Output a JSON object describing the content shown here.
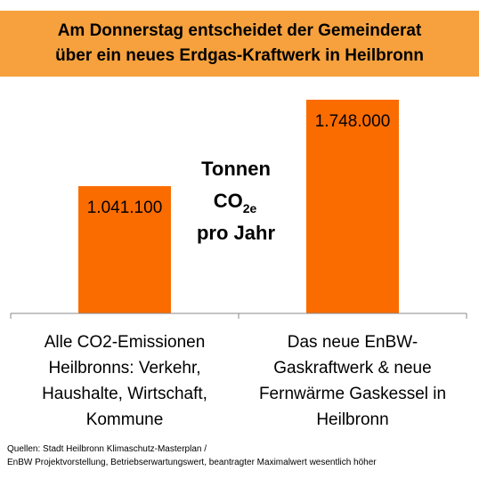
{
  "title": {
    "line1": "Am Donnerstag entscheidet der Gemeinderat",
    "line2": "über ein neues Erdgas-Kraftwerk in Heilbronn"
  },
  "unit": {
    "line1": "Tonnen",
    "co2_main": "CO",
    "co2_sub": "2e",
    "line3": "pro Jahr"
  },
  "sources": {
    "line1": "Quellen: Stadt Heilbronn Klimaschutz-Masterplan /",
    "line2": "EnBW Projektvorstellung, Betriebserwartungswert, beantragter Maximalwert wesentlich höher"
  },
  "colors": {
    "banner": "#f6a13d",
    "bar": "#fb6c00",
    "axis": "#888888"
  },
  "chart_data": {
    "type": "bar",
    "categories": [
      [
        "Alle CO2-Emissionen",
        "Heilbronns: Verkehr,",
        "Haushalte, Wirtschaft,",
        "Kommune"
      ],
      [
        "Das neue EnBW-",
        "Gaskraftwerk & neue",
        "Fernwärme Gaskessel in",
        "Heilbronn"
      ]
    ],
    "values": [
      1041100,
      1748000
    ],
    "value_labels": [
      "1.041.100",
      "1.748.000"
    ],
    "ylim": [
      0,
      1850000
    ],
    "grid": false,
    "legend": "none"
  }
}
